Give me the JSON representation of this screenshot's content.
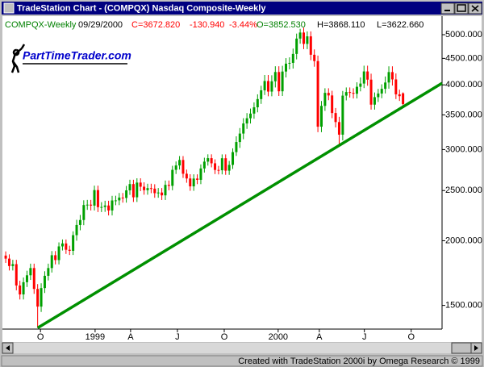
{
  "window": {
    "title": "TradeStation Chart - (COMPQX) Nasdaq Composite-Weekly"
  },
  "status_bar": {
    "text": "Created with TradeStation 2000i by Omega Research © 1999"
  },
  "logo": {
    "text": "PartTimeTrader.com"
  },
  "chart_data": {
    "type": "candlestick",
    "header": [
      {
        "text": "COMPQX-Weekly",
        "color": "#008000"
      },
      {
        "text": "09/29/2000",
        "color": "#000000"
      },
      {
        "text": "C=3672.820",
        "color": "#ff0000"
      },
      {
        "text": "-130.940",
        "color": "#ff0000"
      },
      {
        "text": "-3.44%",
        "color": "#ff0000"
      },
      {
        "text": "O=3852.530",
        "color": "#008000"
      },
      {
        "text": "H=3868.110",
        "color": "#000000"
      },
      {
        "text": "L=3622.660",
        "color": "#000000"
      }
    ],
    "log_scale": true,
    "up_color": "#00a000",
    "down_color": "#ff0000",
    "x": [
      0,
      1,
      2,
      3,
      4,
      5,
      6,
      7,
      8,
      9,
      10,
      11,
      12,
      13,
      14,
      15,
      16,
      17,
      18,
      19,
      20,
      21,
      22,
      23,
      24,
      25,
      26,
      27,
      28,
      29,
      30,
      31,
      32,
      33,
      34,
      35,
      36,
      37,
      38,
      39,
      40,
      41,
      42,
      43,
      44,
      45,
      46,
      47,
      48,
      49,
      50,
      51,
      52,
      53,
      54,
      55,
      56,
      57,
      58,
      59,
      60,
      61,
      62,
      63,
      64,
      65,
      66,
      67,
      68,
      69,
      70,
      71,
      72,
      73,
      74,
      75,
      76,
      77,
      78,
      79,
      80,
      81,
      82,
      83,
      84,
      85,
      86,
      87,
      88,
      89,
      90,
      91,
      92,
      93,
      94,
      95,
      96,
      97,
      98,
      99,
      100,
      101,
      102,
      103,
      104,
      105,
      106,
      107,
      108,
      109,
      110,
      111,
      112
    ],
    "open": [
      1872,
      1847,
      1787,
      1802,
      1639,
      1575,
      1663,
      1715,
      1771,
      1614,
      1492,
      1620,
      1711,
      1771,
      1875,
      1835,
      1950,
      1976,
      1921,
      1912,
      2050,
      2145,
      2193,
      2344,
      2348,
      2338,
      2505,
      2322,
      2324,
      2339,
      2288,
      2392,
      2393,
      2423,
      2419,
      2502,
      2573,
      2426,
      2590,
      2543,
      2504,
      2527,
      2521,
      2471,
      2478,
      2447,
      2564,
      2553,
      2741,
      2795,
      2864,
      2694,
      2638,
      2547,
      2637,
      2622,
      2758,
      2843,
      2887,
      2822,
      2740,
      2736,
      2886,
      2731,
      2802,
      2966,
      3102,
      3221,
      3369,
      3448,
      3520,
      3620,
      3755,
      3904,
      4069,
      3882,
      4064,
      4235,
      3887,
      4244,
      4395,
      4411,
      4590,
      4914,
      5048,
      4799,
      4963,
      4573,
      4446,
      3321,
      3643,
      3860,
      3816,
      3529,
      3390,
      3205,
      3813,
      3874,
      3860,
      3845,
      3966,
      4023,
      4246,
      4094,
      3663,
      3787,
      3849,
      3930,
      4042,
      4234,
      4098,
      3835,
      3852.53
    ],
    "high": [
      1907,
      1882,
      1837,
      1837,
      1674,
      1698,
      1750,
      1806,
      1806,
      1649,
      1655,
      1746,
      1806,
      1910,
      1910,
      1985,
      2011,
      2011,
      1956,
      2085,
      2195,
      2243,
      2394,
      2398,
      2398,
      2555,
      2555,
      2374,
      2389,
      2389,
      2442,
      2443,
      2473,
      2473,
      2552,
      2623,
      2623,
      2640,
      2640,
      2593,
      2577,
      2577,
      2571,
      2528,
      2528,
      2614,
      2614,
      2791,
      2845,
      2914,
      2914,
      2744,
      2688,
      2687,
      2687,
      2808,
      2893,
      2937,
      2937,
      2872,
      2790,
      2936,
      2936,
      2852,
      3016,
      3182,
      3301,
      3449,
      3528,
      3600,
      3700,
      3835,
      3984,
      4179,
      4179,
      4174,
      4345,
      4345,
      4354,
      4505,
      4521,
      4700,
      5024,
      5132,
      5158,
      5073,
      5073,
      4683,
      4556,
      3723,
      3940,
      3940,
      3896,
      3609,
      3470,
      3893,
      3954,
      3954,
      3940,
      4046,
      4133,
      4356,
      4356,
      4204,
      3867,
      3929,
      4010,
      4152,
      4344,
      4344,
      4208,
      3915,
      3868.11
    ],
    "low": [
      1812,
      1752,
      1752,
      1604,
      1540,
      1540,
      1628,
      1680,
      1579,
      1357,
      1457,
      1585,
      1676,
      1736,
      1800,
      1800,
      1915,
      1886,
      1877,
      1877,
      2000,
      2095,
      2143,
      2294,
      2288,
      2288,
      2272,
      2272,
      2274,
      2238,
      2238,
      2342,
      2343,
      2369,
      2369,
      2452,
      2376,
      2376,
      2493,
      2454,
      2454,
      2471,
      2421,
      2421,
      2397,
      2397,
      2503,
      2503,
      2691,
      2745,
      2644,
      2588,
      2497,
      2497,
      2572,
      2572,
      2708,
      2793,
      2772,
      2690,
      2686,
      2686,
      2681,
      2681,
      2752,
      2916,
      3022,
      3141,
      3289,
      3368,
      3440,
      3540,
      3675,
      3824,
      3802,
      3802,
      3954,
      3807,
      3807,
      4134,
      4285,
      4301,
      4480,
      4804,
      4689,
      4689,
      4463,
      4336,
      3241,
      3241,
      3563,
      3736,
      3449,
      3310,
      3042,
      3125,
      3733,
      3780,
      3765,
      3765,
      3886,
      3943,
      3984,
      3583,
      3583,
      3707,
      3769,
      3850,
      3932,
      3988,
      3755,
      3724,
      3622.66
    ],
    "close": [
      1847,
      1787,
      1802,
      1639,
      1575,
      1663,
      1715,
      1771,
      1614,
      1492,
      1620,
      1711,
      1771,
      1875,
      1835,
      1950,
      1976,
      1921,
      1912,
      2050,
      2145,
      2193,
      2344,
      2348,
      2338,
      2505,
      2322,
      2324,
      2339,
      2288,
      2392,
      2393,
      2423,
      2419,
      2502,
      2573,
      2426,
      2590,
      2543,
      2504,
      2527,
      2521,
      2471,
      2478,
      2447,
      2564,
      2553,
      2741,
      2795,
      2864,
      2694,
      2638,
      2547,
      2637,
      2622,
      2758,
      2843,
      2887,
      2822,
      2740,
      2736,
      2886,
      2731,
      2802,
      2966,
      3102,
      3221,
      3369,
      3448,
      3520,
      3620,
      3755,
      3904,
      4069,
      3882,
      4064,
      4235,
      3887,
      4244,
      4395,
      4411,
      4590,
      4914,
      5048,
      4799,
      4963,
      4573,
      4446,
      3321,
      3643,
      3860,
      3816,
      3529,
      3390,
      3205,
      3813,
      3874,
      3860,
      3845,
      3966,
      4023,
      4246,
      4094,
      3663,
      3787,
      3849,
      3930,
      4042,
      4234,
      4098,
      3835,
      3804,
      3672.82
    ],
    "trendline": {
      "x": [
        9,
        123
      ],
      "y": [
        1357,
        4030
      ],
      "color": "#009000"
    },
    "xlim": [
      -0.7,
      123
    ],
    "xticks": [
      {
        "value": 9.8,
        "label": "O"
      },
      {
        "value": 25.2,
        "label": "1999"
      },
      {
        "value": 35.2,
        "label": "A"
      },
      {
        "value": 48.4,
        "label": "J"
      },
      {
        "value": 61.6,
        "label": "O"
      },
      {
        "value": 76.8,
        "label": "2000"
      },
      {
        "value": 88.4,
        "label": "A"
      },
      {
        "value": 101.1,
        "label": "J"
      },
      {
        "value": 114.3,
        "label": "O"
      }
    ],
    "ylim": [
      1350,
      5430
    ],
    "yticks": [
      {
        "value": 1500,
        "label": "1500.000"
      },
      {
        "value": 2000,
        "label": "2000.000"
      },
      {
        "value": 2500,
        "label": "2500.000"
      },
      {
        "value": 3000,
        "label": "3000.000"
      },
      {
        "value": 3500,
        "label": "3500.000"
      },
      {
        "value": 4000,
        "label": "4000.000"
      },
      {
        "value": 4500,
        "label": "4500.000"
      },
      {
        "value": 5000,
        "label": "5000.000"
      }
    ]
  }
}
